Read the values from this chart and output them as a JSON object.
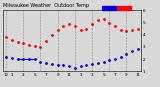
{
  "title": "Milwaukee Weather  Outdoor Temp",
  "bg_color": "#d8d8d8",
  "plot_bg": "#d8d8d8",
  "legend_temp_color": "#ff0000",
  "legend_dew_color": "#0000cc",
  "grid_color": "#888888",
  "hours": [
    0,
    1,
    2,
    3,
    4,
    5,
    6,
    7,
    8,
    9,
    10,
    11,
    12,
    13,
    14,
    15,
    16,
    17,
    18,
    19,
    20,
    21,
    22,
    23
  ],
  "temp": [
    38,
    36,
    34,
    33,
    32,
    31,
    30,
    35,
    40,
    44,
    47,
    49,
    47,
    44,
    45,
    49,
    52,
    53,
    50,
    47,
    44,
    43,
    44,
    45
  ],
  "dew": [
    22,
    21,
    20,
    20,
    20,
    20,
    18,
    17,
    16,
    15,
    15,
    14,
    13,
    14,
    15,
    16,
    17,
    18,
    19,
    20,
    22,
    24,
    27,
    28
  ],
  "dew_solid_start": 2,
  "dew_solid_end": 5,
  "ylim": [
    10,
    60
  ],
  "yticks": [
    10,
    20,
    30,
    40,
    50,
    60
  ],
  "ytick_labels": [
    "1",
    "2",
    "3",
    "4",
    "5",
    "6"
  ],
  "xtick_positions": [
    0,
    1,
    3,
    5,
    7,
    9,
    11,
    13,
    15,
    17,
    19,
    21,
    23
  ],
  "xtick_labels": [
    "12",
    "1",
    "3",
    "5",
    "7",
    "9",
    "11",
    "1",
    "3",
    "5",
    "7",
    "9",
    "11"
  ],
  "grid_positions": [
    0,
    3,
    6,
    9,
    12,
    15,
    18,
    21
  ],
  "title_fontsize": 3.5,
  "tick_fontsize": 3.0,
  "dot_size": 1.0
}
